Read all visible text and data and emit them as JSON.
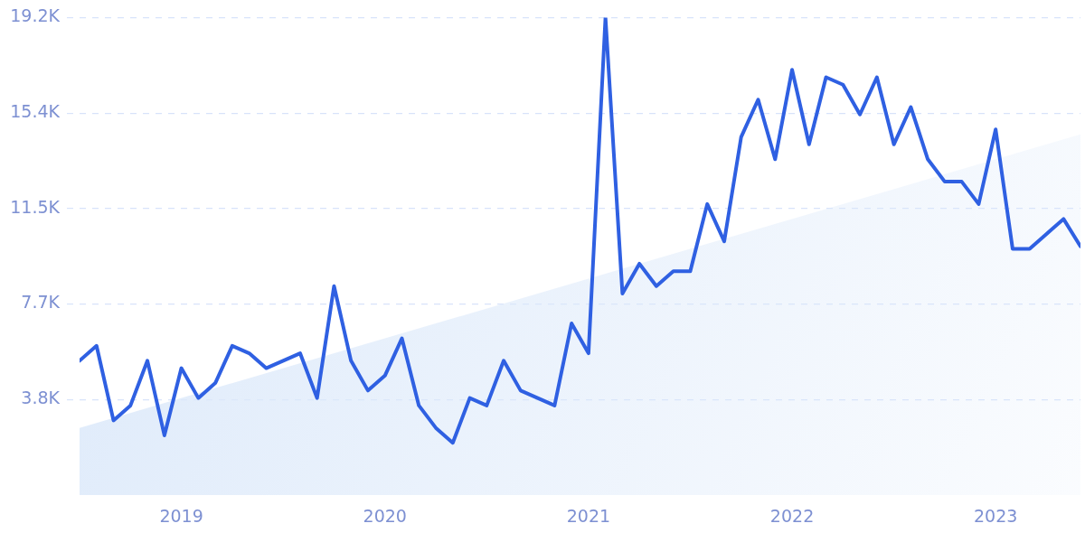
{
  "chart_data": {
    "type": "line",
    "x": [
      "2018-07",
      "2018-08",
      "2018-09",
      "2018-10",
      "2018-11",
      "2018-12",
      "2019-01",
      "2019-02",
      "2019-03",
      "2019-04",
      "2019-05",
      "2019-06",
      "2019-07",
      "2019-08",
      "2019-09",
      "2019-10",
      "2019-11",
      "2019-12",
      "2020-01",
      "2020-02",
      "2020-03",
      "2020-04",
      "2020-05",
      "2020-06",
      "2020-07",
      "2020-08",
      "2020-09",
      "2020-10",
      "2020-11",
      "2020-12",
      "2021-01",
      "2021-02",
      "2021-03",
      "2021-04",
      "2021-05",
      "2021-06",
      "2021-07",
      "2021-08",
      "2021-09",
      "2021-10",
      "2021-11",
      "2021-12",
      "2022-01",
      "2022-02",
      "2022-03",
      "2022-04",
      "2022-05",
      "2022-06",
      "2022-07",
      "2022-08",
      "2022-09",
      "2022-10",
      "2022-11",
      "2022-12",
      "2023-01",
      "2023-02",
      "2023-03",
      "2023-04",
      "2023-05",
      "2023-06"
    ],
    "xlim": [
      "2018-07",
      "2023-06"
    ],
    "xticks": [
      "2019",
      "2020",
      "2021",
      "2022",
      "2023"
    ],
    "ylim": [
      0,
      19200
    ],
    "yticks": [
      {
        "value": 3840,
        "label": "3.8K"
      },
      {
        "value": 7680,
        "label": "7.7K"
      },
      {
        "value": 11520,
        "label": "11.5K"
      },
      {
        "value": 15360,
        "label": "15.4K"
      },
      {
        "value": 19200,
        "label": "19.2K"
      }
    ],
    "grid": "y",
    "marker": "none",
    "series": [
      {
        "type": "area",
        "x": [
          "2018-07",
          "2023-06"
        ],
        "color": "#dce9fa",
        "values": [
          2700,
          14500
        ]
      },
      {
        "color": "#2f60e2",
        "values": [
          5400,
          6000,
          3000,
          3600,
          5400,
          2400,
          5100,
          3900,
          4500,
          6000,
          5700,
          5100,
          5400,
          5700,
          3900,
          8400,
          5400,
          4200,
          4800,
          6300,
          3600,
          2700,
          2100,
          3900,
          3600,
          5400,
          4200,
          3900,
          3600,
          6900,
          5700,
          19200,
          8100,
          9300,
          8400,
          9000,
          9000,
          11700,
          10200,
          14400,
          15900,
          13500,
          17100,
          14100,
          16800,
          16500,
          15300,
          16800,
          14100,
          15600,
          13500,
          12600,
          12600,
          11700,
          14700,
          9900,
          9900,
          10500,
          11100,
          10000
        ]
      }
    ]
  }
}
